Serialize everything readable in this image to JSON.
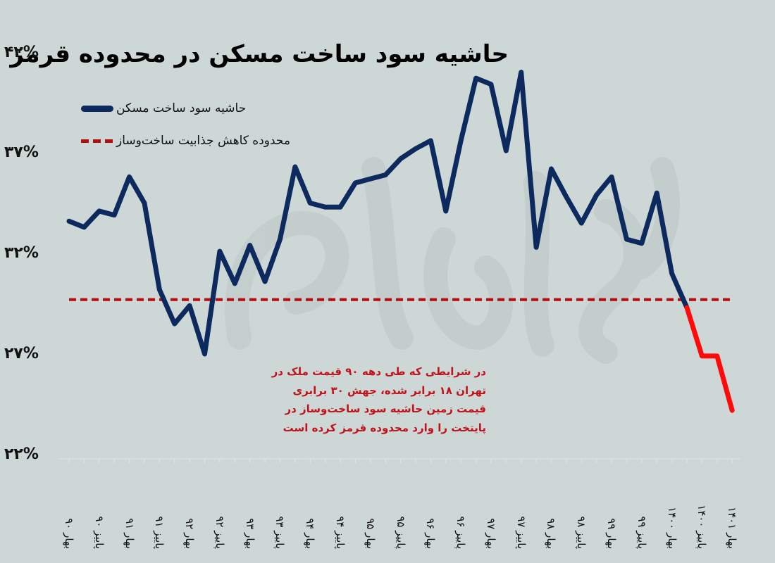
{
  "title": "حاشیه سود ساخت مسکن در محدوده قرمز",
  "legend": {
    "series_label": "حاشیه سود ساخت مسکن",
    "threshold_label": "محدوده کاهش جذابیت ساخت‌وساز"
  },
  "y_ticks": [
    "۴۲%",
    "۳۷%",
    "۳۲%",
    "۲۷%",
    "۲۲%"
  ],
  "x_labels": [
    "بهار ۹۰",
    "پاییز ۹۰",
    "بهار ۹۱",
    "پاییز ۹۱",
    "بهار ۹۲",
    "پاییز ۹۲",
    "بهار ۹۳",
    "پاییز ۹۳",
    "بهار ۹۴",
    "پاییز ۹۴",
    "بهار ۹۵",
    "پاییز ۹۵",
    "بهار ۹۶",
    "پاییز ۹۶",
    "بهار ۹۷",
    "پاییز ۹۷",
    "بهار ۹۸",
    "پاییز ۹۸",
    "بهار ۹۹",
    "پاییز ۹۹",
    "بهار ۱۴۰۰",
    "پاییز ۱۴۰۰",
    "بهار ۱۴۰۱"
  ],
  "annotation": {
    "lines": [
      "در شرایطی که طی دهه ۹۰ قیمت ملک در",
      "تهران ۱۸ برابر شده، جهش ۳۰ برابری",
      "قیمت زمین حاشیه سود ساخت‌وساز در",
      "پایتخت را وارد محدوده قرمز کرده است"
    ]
  },
  "watermark": "فردای اقتصاد",
  "colors": {
    "background": "#cdd7d6",
    "series": "#0d2a5f",
    "series_red_segment": "#ff0a0a",
    "threshold": "#b30d0d",
    "annotation": "#c0121a",
    "watermark": "#bfcac8"
  },
  "chart_data": {
    "type": "line",
    "title": "حاشیه سود ساخت مسکن در محدوده قرمز",
    "xlabel": "",
    "ylabel": "",
    "ylim": [
      22,
      42
    ],
    "yticks": [
      22,
      27,
      32,
      37,
      42
    ],
    "grid": false,
    "legend_position": "top-left",
    "x_tick_labels": [
      "بهار ۹۰",
      "پاییز ۹۰",
      "بهار ۹۱",
      "پاییز ۹۱",
      "بهار ۹۲",
      "پاییز ۹۲",
      "بهار ۹۳",
      "پاییز ۹۳",
      "بهار ۹۴",
      "پاییز ۹۴",
      "بهار ۹۵",
      "پاییز ۹۵",
      "بهار ۹۶",
      "پاییز ۹۶",
      "بهار ۹۷",
      "پاییز ۹۷",
      "بهار ۹۸",
      "پاییز ۹۸",
      "بهار ۹۹",
      "پاییز ۹۹",
      "بهار ۱۴۰۰",
      "پاییز ۱۴۰۰",
      "بهار ۱۴۰۱"
    ],
    "x_tick_every": 2,
    "series": [
      {
        "name": "حاشیه سود ساخت مسکن",
        "style": "solid",
        "color": "#0d2a5f",
        "red_from_index": 41,
        "values": [
          33.6,
          33.3,
          34.1,
          33.9,
          35.8,
          34.5,
          30.2,
          28.5,
          29.4,
          27.0,
          32.1,
          30.5,
          32.4,
          30.6,
          32.7,
          36.3,
          34.5,
          34.3,
          34.3,
          35.5,
          35.7,
          35.9,
          36.7,
          37.2,
          37.6,
          34.1,
          37.6,
          40.7,
          40.4,
          37.1,
          41.0,
          32.3,
          36.2,
          34.8,
          33.5,
          34.9,
          35.8,
          32.7,
          32.5,
          35.0,
          31.0,
          29.3,
          26.9,
          26.9,
          24.2
        ]
      },
      {
        "name": "محدوده کاهش جذابیت ساخت‌وساز",
        "style": "dashed",
        "color": "#b30d0d",
        "constant": 29.7
      }
    ],
    "annotations": [
      "در شرایطی که طی دهه ۹۰ قیمت ملک در تهران ۱۸ برابر شده، جهش ۳۰ برابری قیمت زمین حاشیه سود ساخت‌وساز در پایتخت را وارد محدوده قرمز کرده است"
    ]
  }
}
